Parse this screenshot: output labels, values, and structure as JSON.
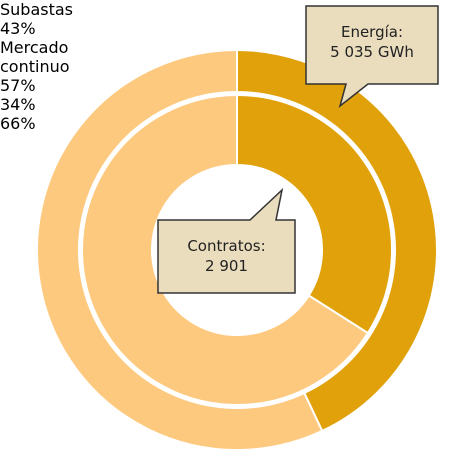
{
  "chart_data": {
    "type": "donut",
    "categories": [
      "Subastas",
      "Mercado continuo"
    ],
    "colors": [
      "#E0A10A",
      "#FDC97E"
    ],
    "series": [
      {
        "values": [
          43,
          57
        ],
        "value_labels": [
          "43%",
          "57%"
        ]
      },
      {
        "values": [
          34,
          66
        ],
        "value_labels": [
          "34%",
          "66%"
        ]
      }
    ],
    "annotations": [
      {
        "title": "Energía:",
        "text": "5 035 GWh"
      },
      {
        "title": "Contratos:",
        "text": "2 901"
      }
    ]
  }
}
